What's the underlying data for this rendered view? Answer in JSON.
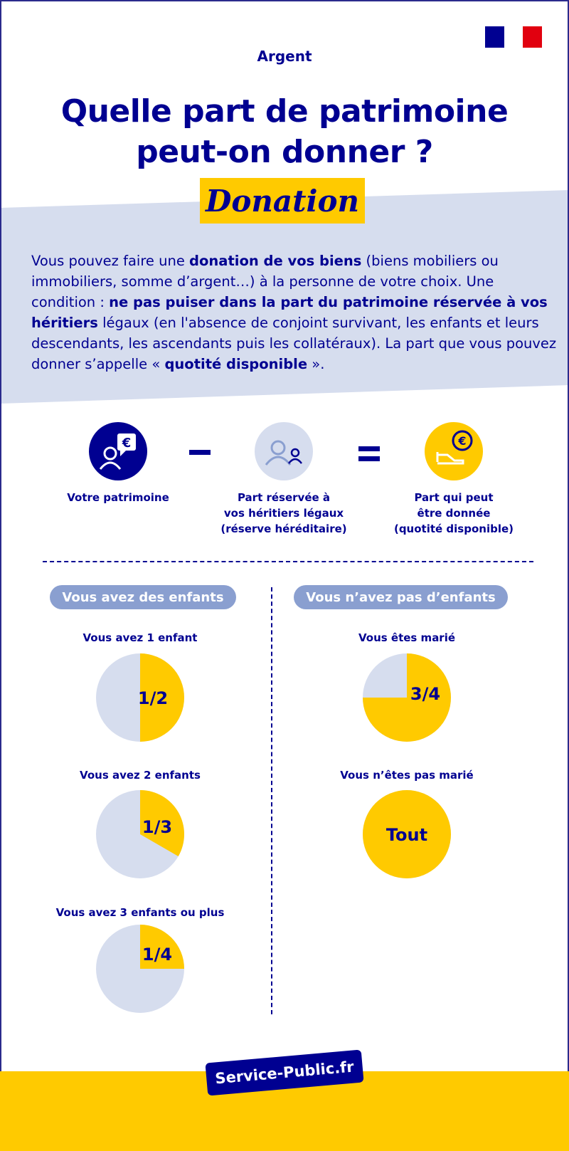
{
  "colors": {
    "navy": "#000091",
    "yellow": "#FFCA00",
    "light_blue": "#D6DDEE",
    "pill": "#8A9FD0",
    "flag_blue": "#000091",
    "flag_red": "#E1000F"
  },
  "logo": {
    "name": "Marianne République française logo"
  },
  "header": {
    "rubric": "Argent",
    "title_line1": "Quelle part de patrimoine",
    "title_line2": "peut-on donner ?",
    "tag": "Donation"
  },
  "intro": {
    "p1": "Vous pouvez faire une ",
    "b1": "donation de vos biens",
    "p2": " (biens mobiliers ou immobiliers, somme d’argent…) à la personne de votre choix. Une condition : ",
    "b2": "ne pas puiser dans la part du patrimoine réservée à vos héritiers",
    "p3": " légaux (en l'absence de conjoint survivant, les enfants et leurs descendants, les ascendants puis les collatéraux). La part que vous pouvez donner s’appelle « ",
    "b3": "quotité disponible",
    "p4": " »."
  },
  "equation": {
    "items": [
      {
        "icon": "person-euro-bubble-icon",
        "label_lines": [
          "Votre patrimoine"
        ]
      },
      {
        "icon": "heirs-people-icon",
        "label_lines": [
          "Part réservée à",
          "vos héritiers légaux",
          "(réserve héréditaire)"
        ]
      },
      {
        "icon": "hand-euro-coin-icon",
        "label_lines": [
          "Part qui peut",
          "être donnée",
          "(quotité disponible)"
        ]
      }
    ],
    "minus": "minus-sign",
    "equals": "equals-sign"
  },
  "sections": {
    "with_children": {
      "title": "Vous avez des enfants",
      "cases": [
        {
          "label": "Vous avez 1 enfant",
          "share": "1/2",
          "fraction": 0.5
        },
        {
          "label": "Vous avez 2 enfants",
          "share": "1/3",
          "fraction": 0.3333
        },
        {
          "label": "Vous avez 3 enfants ou plus",
          "share": "1/4",
          "fraction": 0.25
        }
      ]
    },
    "without_children": {
      "title": "Vous n’avez pas d’enfants",
      "cases": [
        {
          "label": "Vous êtes marié",
          "share": "3/4",
          "fraction": 0.75
        },
        {
          "label": "Vous n’êtes pas marié",
          "share": "Tout",
          "fraction": 1
        }
      ]
    }
  },
  "footer": {
    "brand": "Service-Public.fr"
  }
}
